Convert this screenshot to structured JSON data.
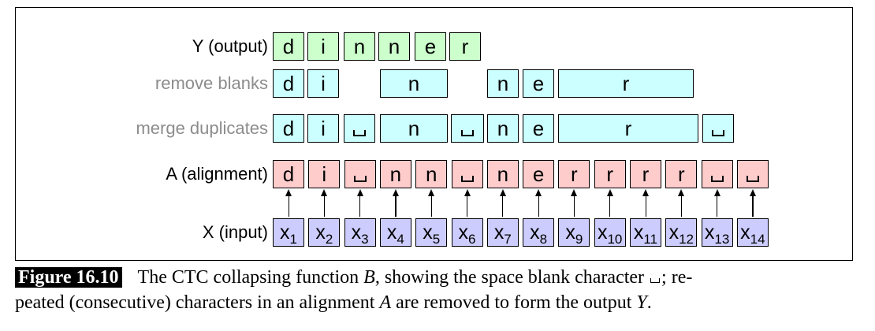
{
  "rows": {
    "output": {
      "label": "Y (output)",
      "cells": [
        "d",
        "i",
        "n",
        "n",
        "e",
        "r"
      ]
    },
    "remove_blanks": {
      "label": "remove blanks",
      "cells": [
        "d",
        "i",
        "n",
        "n",
        "e",
        "r"
      ]
    },
    "merge_duplicates": {
      "label": "merge duplicates",
      "cells": [
        "d",
        "i",
        "␣",
        "n",
        "␣",
        "n",
        "e",
        "r",
        "␣"
      ]
    },
    "alignment": {
      "label": "A (alignment)",
      "cells": [
        "d",
        "i",
        "␣",
        "n",
        "n",
        "␣",
        "n",
        "e",
        "r",
        "r",
        "r",
        "r",
        "␣",
        "␣"
      ]
    },
    "input": {
      "label": "X (input)",
      "cells": [
        "x",
        "x",
        "x",
        "x",
        "x",
        "x",
        "x",
        "x",
        "x",
        "x",
        "x",
        "x",
        "x",
        "x"
      ],
      "subscripts": [
        "1",
        "2",
        "3",
        "4",
        "5",
        "6",
        "7",
        "8",
        "9",
        "10",
        "11",
        "12",
        "13",
        "14"
      ]
    }
  },
  "caption": {
    "tag": "Figure 16.10",
    "text_1": "The CTC collapsing function ",
    "var_B": "B",
    "text_2": ", showing the space blank character ",
    "text_3": "; re-",
    "text_4": "peated (consecutive) characters in an alignment ",
    "var_A": "A",
    "text_5": " are removed to form the output ",
    "var_Y": "Y",
    "text_6": "."
  },
  "colors": {
    "output": "#ccffcc",
    "collapse": "#ccffff",
    "alignment": "#ffcccc",
    "input": "#ccccff",
    "muted_label": "#8c8c8c"
  }
}
